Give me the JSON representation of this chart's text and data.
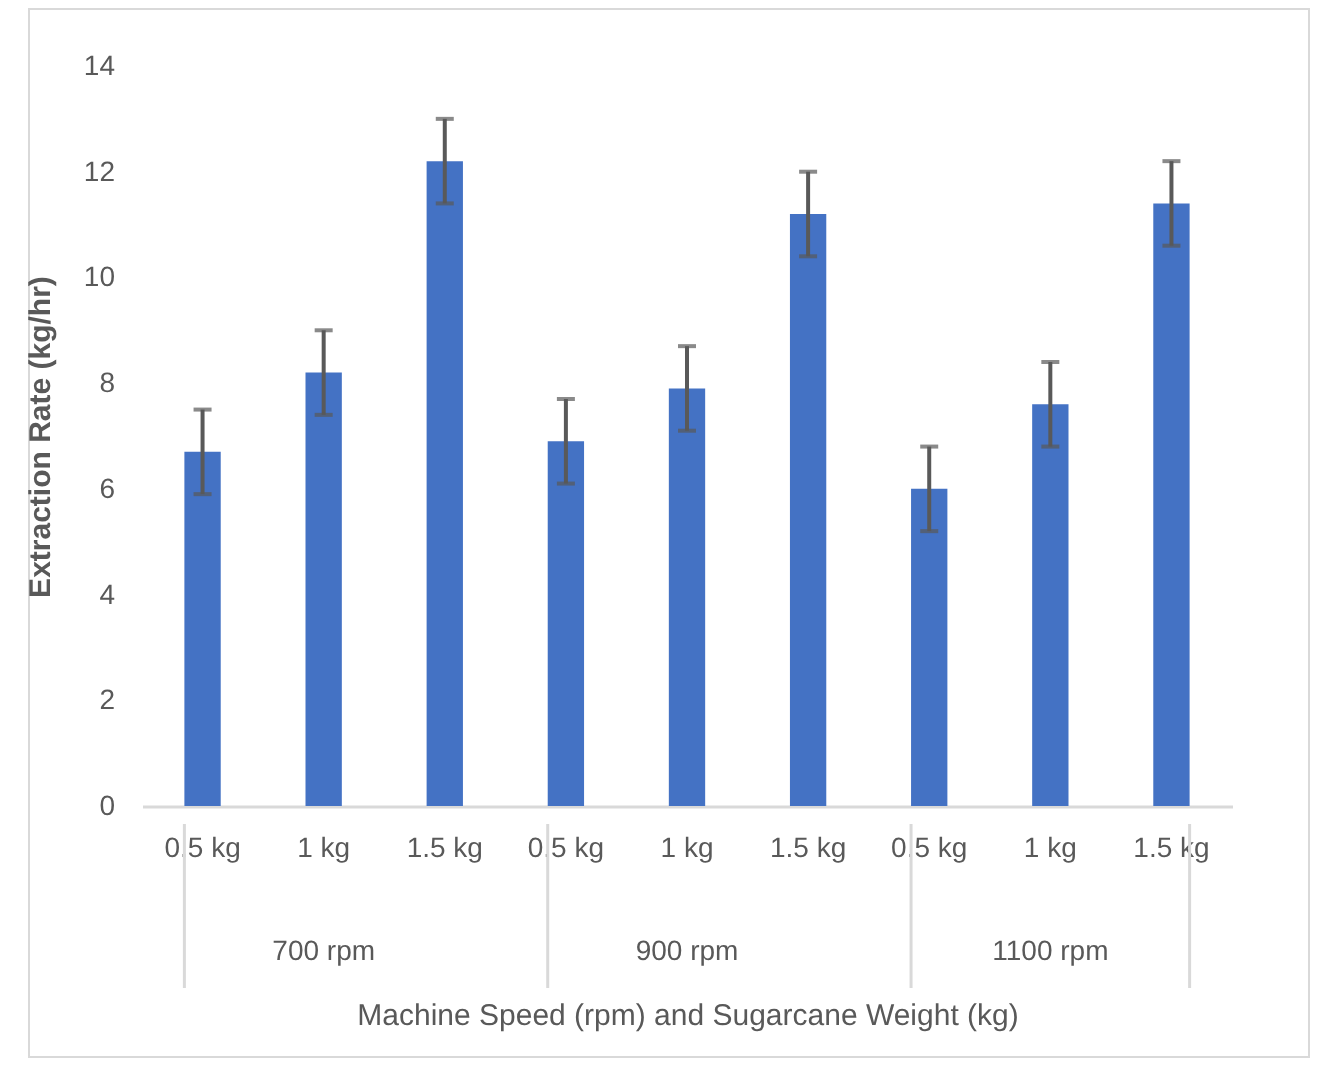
{
  "chart_data": {
    "type": "bar",
    "xlabel": "Machine Speed (rpm) and Sugarcane Weight (kg)",
    "ylabel": "Extraction Rate (kg/hr)",
    "categories": [
      "0.5 kg",
      "1 kg",
      "1.5 kg",
      "0.5 kg",
      "1 kg",
      "1.5 kg",
      "0.5 kg",
      "1 kg",
      "1.5 kg"
    ],
    "values": [
      6.7,
      8.2,
      12.2,
      6.9,
      7.9,
      11.2,
      6.0,
      7.6,
      11.4
    ],
    "errors": [
      0.8,
      0.8,
      0.8,
      0.8,
      0.8,
      0.8,
      0.8,
      0.8,
      0.8
    ],
    "color": "#4472c4",
    "ylim": [
      0,
      14
    ],
    "yticks": [
      0,
      2,
      4,
      6,
      8,
      10,
      12,
      14
    ],
    "grid": false,
    "annotations": [
      "700 rpm",
      "900 rpm",
      "1100 rpm"
    ]
  }
}
